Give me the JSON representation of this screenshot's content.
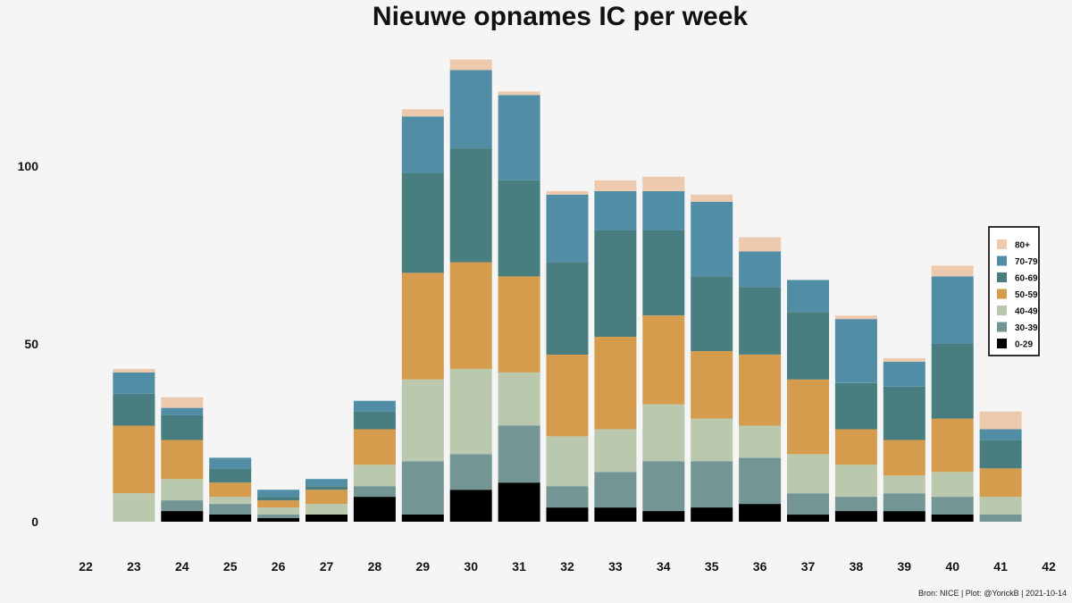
{
  "chart_data": {
    "type": "bar",
    "stacked": true,
    "title": "Nieuwe opnames IC per week",
    "xlabel": "",
    "ylabel": "",
    "x_ticks": [
      22,
      23,
      24,
      25,
      26,
      27,
      28,
      29,
      30,
      31,
      32,
      33,
      34,
      35,
      36,
      37,
      38,
      39,
      40,
      41,
      42
    ],
    "y_ticks": [
      0,
      50,
      100
    ],
    "ylim": [
      0,
      130
    ],
    "xlim": [
      22,
      42
    ],
    "grid": false,
    "legend_position": "right",
    "categories": [
      23,
      24,
      25,
      26,
      27,
      28,
      29,
      30,
      31,
      32,
      33,
      34,
      35,
      36,
      37,
      38,
      39,
      40,
      41
    ],
    "series": [
      {
        "name": "0-29",
        "color": "#000000",
        "values": [
          0,
          3,
          2,
          1,
          2,
          7,
          2,
          9,
          11,
          4,
          4,
          3,
          4,
          5,
          2,
          3,
          3,
          2,
          0
        ]
      },
      {
        "name": "30-39",
        "color": "#739594",
        "values": [
          0,
          3,
          3,
          1,
          0,
          3,
          15,
          10,
          16,
          6,
          10,
          14,
          13,
          13,
          6,
          4,
          5,
          5,
          2
        ]
      },
      {
        "name": "40-49",
        "color": "#bac8ae",
        "values": [
          8,
          6,
          2,
          2,
          3,
          6,
          23,
          24,
          15,
          14,
          12,
          16,
          12,
          9,
          11,
          9,
          5,
          7,
          5
        ]
      },
      {
        "name": "50-59",
        "color": "#d59c4e",
        "values": [
          19,
          11,
          4,
          2,
          4,
          10,
          30,
          30,
          27,
          23,
          26,
          25,
          19,
          20,
          21,
          10,
          10,
          15,
          8
        ]
      },
      {
        "name": "60-69",
        "color": "#487e7f",
        "values": [
          9,
          7,
          4,
          1,
          1,
          5,
          28,
          32,
          27,
          26,
          30,
          24,
          21,
          19,
          19,
          13,
          15,
          21,
          8
        ]
      },
      {
        "name": "70-79",
        "color": "#518ea6",
        "values": [
          6,
          2,
          3,
          2,
          2,
          3,
          16,
          22,
          24,
          19,
          11,
          11,
          21,
          10,
          9,
          18,
          7,
          19,
          3
        ]
      },
      {
        "name": "80+",
        "color": "#edc9ae",
        "values": [
          1,
          3,
          0,
          0,
          0,
          0,
          2,
          3,
          1,
          1,
          3,
          4,
          2,
          4,
          0,
          1,
          1,
          3,
          5
        ]
      }
    ]
  },
  "caption": "Bron: NICE | Plot: @YorickB |  2021-10-14"
}
